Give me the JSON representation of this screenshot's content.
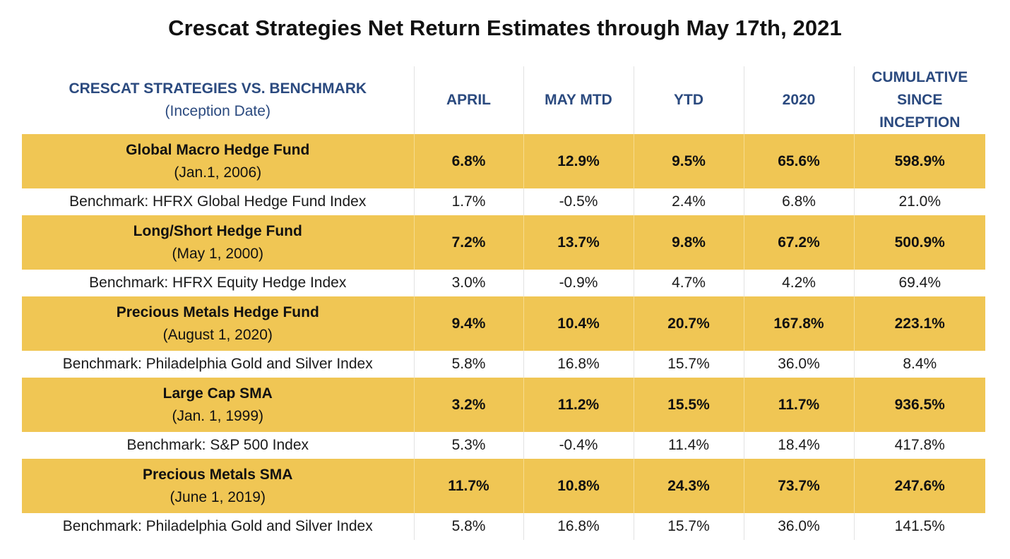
{
  "title": "Crescat Strategies Net Return Estimates through May 17th, 2021",
  "colors": {
    "header_text": "#2b4a7f",
    "fund_row_bg": "#f0c654",
    "bench_row_bg": "#ffffff"
  },
  "chart_data": {
    "type": "table",
    "title": "Crescat Strategies Net Return Estimates through May 17th, 2021",
    "header": {
      "label": "CRESCAT STRATEGIES VS. BENCHMARK",
      "sublabel": "(Inception Date)",
      "columns": [
        "APRIL",
        "MAY MTD",
        "YTD",
        "2020",
        "CUMULATIVE SINCE INCEPTION"
      ]
    },
    "groups": [
      {
        "fund": {
          "name": "Global Macro Hedge Fund",
          "inception": "(Jan.1, 2006)",
          "values": [
            "6.8%",
            "12.9%",
            "9.5%",
            "65.6%",
            "598.9%"
          ]
        },
        "benchmark": {
          "name": "Benchmark: HFRX Global Hedge Fund Index",
          "values": [
            "1.7%",
            "-0.5%",
            "2.4%",
            "6.8%",
            "21.0%"
          ]
        }
      },
      {
        "fund": {
          "name": "Long/Short Hedge Fund",
          "inception": "(May 1, 2000)",
          "values": [
            "7.2%",
            "13.7%",
            "9.8%",
            "67.2%",
            "500.9%"
          ]
        },
        "benchmark": {
          "name": "Benchmark: HFRX Equity Hedge Index",
          "values": [
            "3.0%",
            "-0.9%",
            "4.7%",
            "4.2%",
            "69.4%"
          ]
        }
      },
      {
        "fund": {
          "name": "Precious Metals Hedge Fund",
          "inception": "(August 1, 2020)",
          "values": [
            "9.4%",
            "10.4%",
            "20.7%",
            "167.8%",
            "223.1%"
          ]
        },
        "benchmark": {
          "name": "Benchmark: Philadelphia Gold and Silver Index",
          "values": [
            "5.8%",
            "16.8%",
            "15.7%",
            "36.0%",
            "8.4%"
          ]
        }
      },
      {
        "fund": {
          "name": "Large Cap SMA",
          "inception": "(Jan. 1, 1999)",
          "values": [
            "3.2%",
            "11.2%",
            "15.5%",
            "11.7%",
            "936.5%"
          ]
        },
        "benchmark": {
          "name": "Benchmark: S&P 500 Index",
          "values": [
            "5.3%",
            "-0.4%",
            "11.4%",
            "18.4%",
            "417.8%"
          ]
        }
      },
      {
        "fund": {
          "name": "Precious Metals SMA",
          "inception": "(June 1, 2019)",
          "values": [
            "11.7%",
            "10.8%",
            "24.3%",
            "73.7%",
            "247.6%"
          ]
        },
        "benchmark": {
          "name": "Benchmark: Philadelphia Gold and Silver Index",
          "values": [
            "5.8%",
            "16.8%",
            "15.7%",
            "36.0%",
            "141.5%"
          ]
        }
      }
    ]
  }
}
